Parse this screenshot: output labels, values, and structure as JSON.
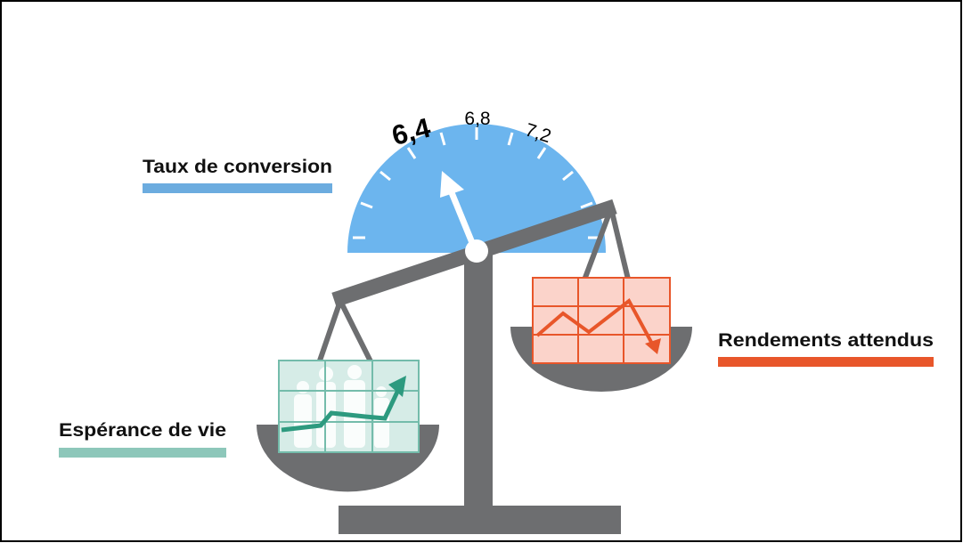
{
  "labels": {
    "conversion": "Taux de conversion",
    "returns": "Rendements attendus",
    "life_expectancy": "Espérance de vie"
  },
  "gauge": {
    "ticks": [
      "6,4",
      "6,8",
      "7,2"
    ]
  }
}
